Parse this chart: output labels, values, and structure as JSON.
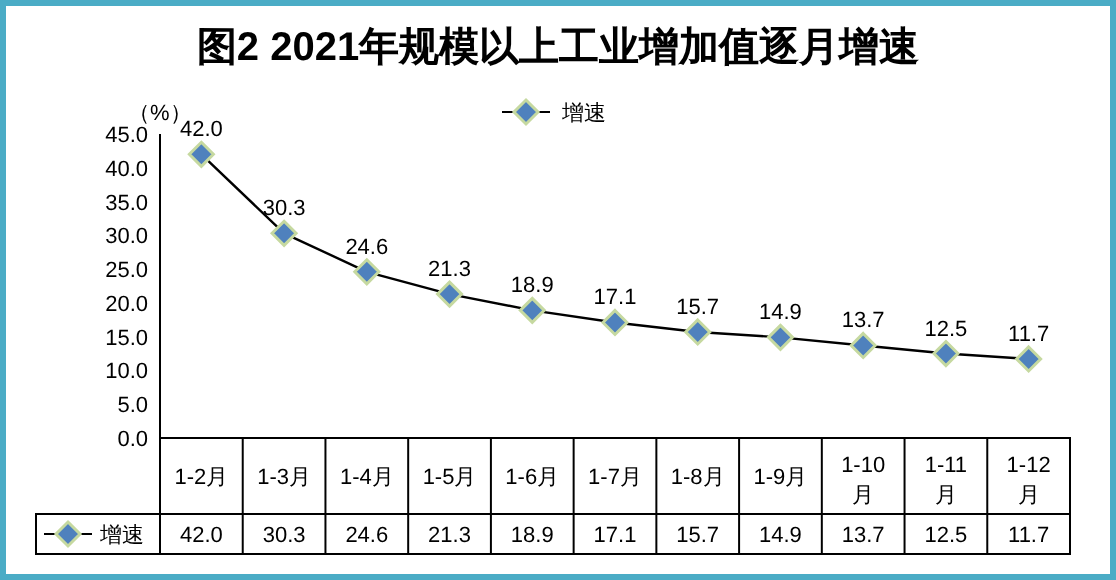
{
  "chart_data": {
    "type": "line",
    "title": "图2 2021年规模以上工业增加值逐月增速",
    "ylabel": "（%）",
    "categories": [
      "1-2月",
      "1-3月",
      "1-4月",
      "1-5月",
      "1-6月",
      "1-7月",
      "1-8月",
      "1-9月",
      "1-10月",
      "1-11月",
      "1-12月"
    ],
    "series": [
      {
        "name": "增速",
        "color": "#4f81bd",
        "values": [
          42.0,
          30.3,
          24.6,
          21.3,
          18.9,
          17.1,
          15.7,
          14.9,
          13.7,
          12.5,
          11.7
        ],
        "value_labels": [
          "42.0",
          "30.3",
          "24.6",
          "21.3",
          "18.9",
          "17.1",
          "15.7",
          "14.9",
          "13.7",
          "12.5",
          "11.7"
        ]
      }
    ],
    "ylim": [
      0,
      45
    ],
    "yticks": [
      {
        "value": 0,
        "label": "0.0"
      },
      {
        "value": 5,
        "label": "5.0"
      },
      {
        "value": 10,
        "label": "10.0"
      },
      {
        "value": 15,
        "label": "15.0"
      },
      {
        "value": 20,
        "label": "20.0"
      },
      {
        "value": 25,
        "label": "25.0"
      },
      {
        "value": 30,
        "label": "30.0"
      },
      {
        "value": 35,
        "label": "35.0"
      },
      {
        "value": 40,
        "label": "40.0"
      },
      {
        "value": 45,
        "label": "45.0"
      }
    ],
    "marker": "diamond",
    "legend": "top",
    "grid": false
  }
}
